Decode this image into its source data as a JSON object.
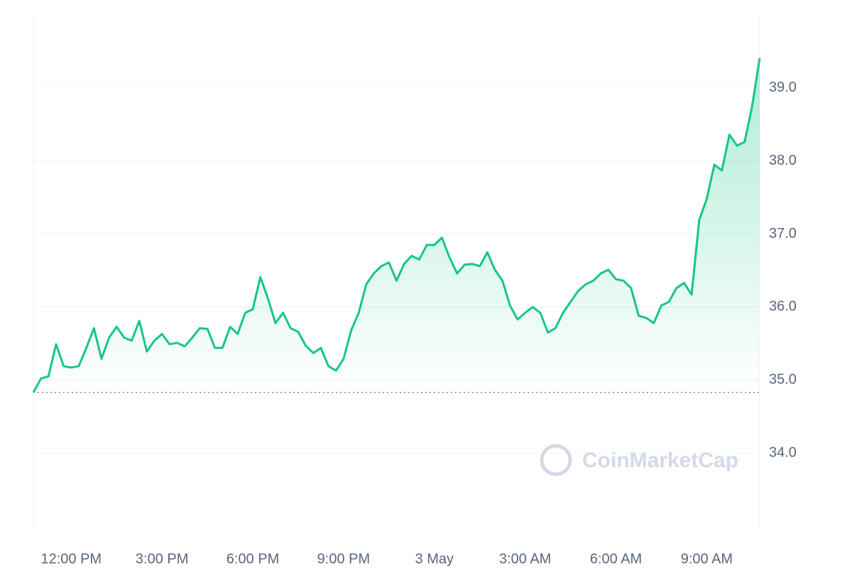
{
  "chart_data": {
    "type": "line",
    "categories": [
      null,
      null,
      null,
      null,
      null,
      "12:00 PM",
      null,
      null,
      null,
      null,
      null,
      null,
      null,
      null,
      null,
      null,
      null,
      "3:00 PM",
      null,
      null,
      null,
      null,
      null,
      null,
      null,
      null,
      null,
      null,
      null,
      "6:00 PM",
      null,
      null,
      null,
      null,
      null,
      null,
      null,
      null,
      null,
      null,
      null,
      "9:00 PM",
      null,
      null,
      null,
      null,
      null,
      null,
      null,
      null,
      null,
      null,
      null,
      "3 May",
      null,
      null,
      null,
      null,
      null,
      null,
      null,
      null,
      null,
      null,
      null,
      "3:00 AM",
      null,
      null,
      null,
      null,
      null,
      null,
      null,
      null,
      null,
      null,
      null,
      "6:00 AM",
      null,
      null,
      null,
      null,
      null,
      null,
      null,
      null,
      null,
      null,
      null,
      "9:00 AM",
      null,
      null,
      null,
      null,
      null,
      null,
      null
    ],
    "series": [
      {
        "color": "#16c784",
        "values": [
          34.83,
          35.02,
          35.05,
          35.49,
          35.19,
          35.17,
          35.19,
          35.44,
          35.71,
          35.29,
          35.58,
          35.73,
          35.58,
          35.54,
          35.81,
          35.39,
          35.54,
          35.63,
          35.49,
          35.51,
          35.46,
          35.58,
          35.71,
          35.7,
          35.44,
          35.44,
          35.73,
          35.63,
          35.92,
          35.97,
          36.41,
          36.12,
          35.78,
          35.92,
          35.71,
          35.66,
          35.47,
          35.37,
          35.44,
          35.19,
          35.13,
          35.29,
          35.68,
          35.92,
          36.31,
          36.46,
          36.56,
          36.61,
          36.36,
          36.59,
          36.7,
          36.65,
          36.85,
          36.85,
          36.95,
          36.68,
          36.46,
          36.58,
          36.59,
          36.56,
          36.75,
          36.51,
          36.36,
          36.02,
          35.83,
          35.92,
          36.0,
          35.92,
          35.65,
          35.71,
          35.92,
          36.07,
          36.22,
          36.31,
          36.36,
          36.46,
          36.51,
          36.38,
          36.36,
          36.26,
          35.88,
          35.85,
          35.78,
          36.02,
          36.07,
          36.26,
          36.33,
          36.17,
          37.19,
          37.48,
          37.95,
          37.87,
          38.36,
          38.21,
          38.26,
          38.75,
          39.41
        ]
      }
    ],
    "baseline": 34.83,
    "ylim": [
      32.96,
      40.03
    ],
    "yticks": [
      {
        "value": 34,
        "label": "34.0"
      },
      {
        "value": 35,
        "label": "35.0"
      },
      {
        "value": 36,
        "label": "36.0"
      },
      {
        "value": 37,
        "label": "37.0"
      },
      {
        "value": 38,
        "label": "38.0"
      },
      {
        "value": 39,
        "label": "39.0"
      }
    ],
    "grid": true,
    "watermark": "CoinMarketCap"
  }
}
